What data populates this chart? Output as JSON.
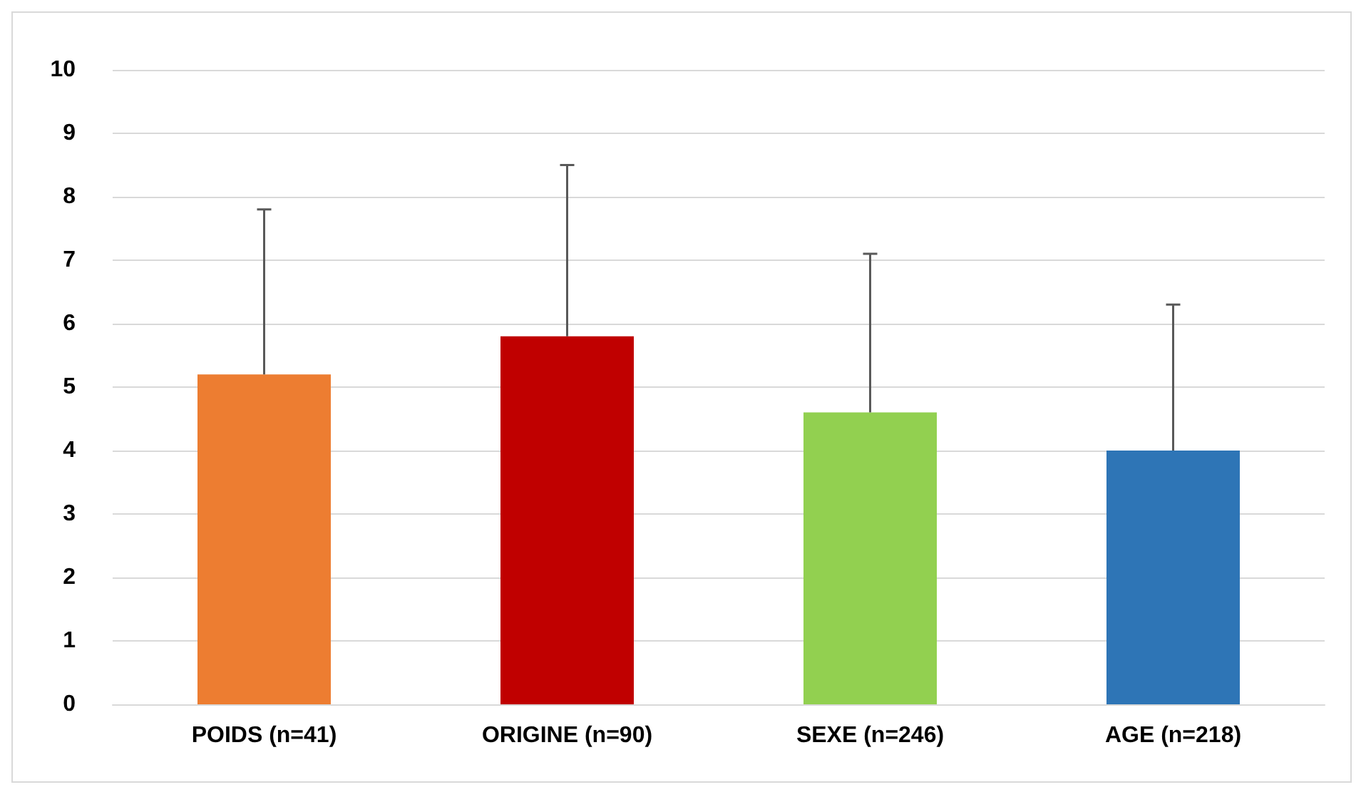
{
  "chart_data": {
    "type": "bar",
    "categories": [
      "POIDS (n=41)",
      "ORIGINE (n=90)",
      "SEXE (n=246)",
      "AGE (n=218)"
    ],
    "values": [
      5.2,
      5.8,
      4.6,
      4.0
    ],
    "colors": [
      "#ed7d31",
      "#c00000",
      "#92d050",
      "#2e75b6"
    ],
    "errors": [
      [
        5.2,
        7.8
      ],
      [
        5.8,
        8.5
      ],
      [
        4.6,
        7.1
      ],
      [
        4.0,
        6.3
      ]
    ],
    "ylim": [
      0,
      10
    ],
    "yticks": [
      0,
      1,
      2,
      3,
      4,
      5,
      6,
      7,
      8,
      9,
      10
    ],
    "grid": "y"
  }
}
